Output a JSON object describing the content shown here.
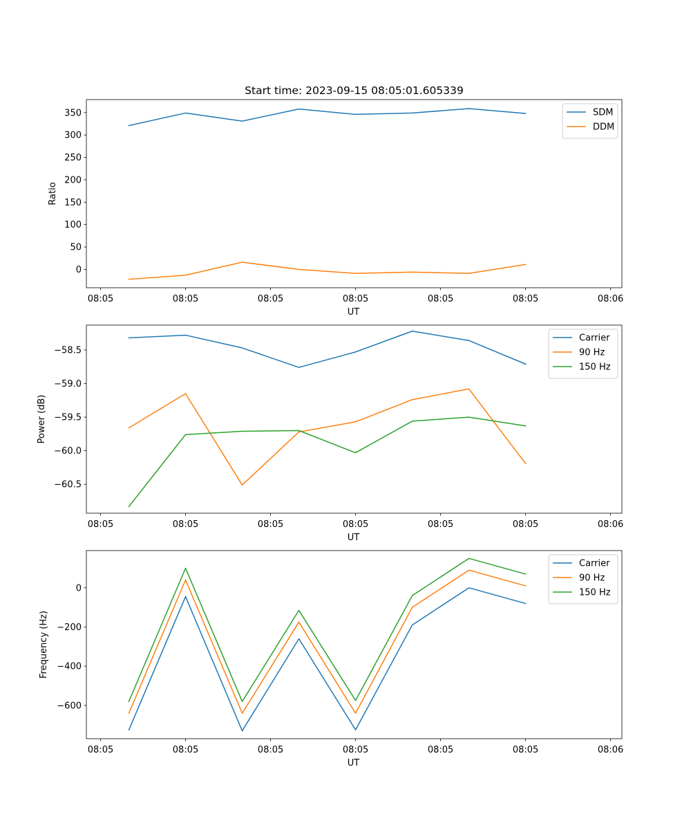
{
  "figure": {
    "title": "Start time: 2023-09-15 08:05:01.605339"
  },
  "chart_data": [
    {
      "type": "line",
      "title": "Start time: 2023-09-15 08:05:01.605339",
      "xlabel": "UT",
      "ylabel": "Ratio",
      "x": [
        1,
        2,
        3,
        4,
        5,
        6,
        7,
        8
      ],
      "xlim": [
        0.25,
        9.7
      ],
      "x_ticks": [
        0.5,
        2.0,
        3.5,
        5.0,
        6.5,
        8.0,
        9.5
      ],
      "x_tick_labels": [
        "08:05",
        "08:05",
        "08:05",
        "08:05",
        "08:05",
        "08:05",
        "08:06"
      ],
      "ylim": [
        -41,
        379
      ],
      "y_ticks": [
        0,
        50,
        100,
        150,
        200,
        250,
        300,
        350
      ],
      "y_tick_labels": [
        "0",
        "50",
        "100",
        "150",
        "200",
        "250",
        "300",
        "350"
      ],
      "legend_position": "top-right",
      "grid": false,
      "series": [
        {
          "name": "SDM",
          "color": "#1f77b4",
          "values": [
            321,
            349,
            331,
            358,
            346,
            349,
            359,
            348
          ]
        },
        {
          "name": "DDM",
          "color": "#ff7f0e",
          "values": [
            -22,
            -13,
            16,
            0,
            -9,
            -6,
            -9,
            11
          ]
        }
      ]
    },
    {
      "type": "line",
      "title": "",
      "xlabel": "UT",
      "ylabel": "Power (dB)",
      "x": [
        1,
        2,
        3,
        4,
        5,
        6,
        7,
        8
      ],
      "xlim": [
        0.25,
        9.7
      ],
      "x_ticks": [
        0.5,
        2.0,
        3.5,
        5.0,
        6.5,
        8.0,
        9.5
      ],
      "x_tick_labels": [
        "08:05",
        "08:05",
        "08:05",
        "08:05",
        "08:05",
        "08:05",
        "08:06"
      ],
      "ylim": [
        -60.93,
        -58.13
      ],
      "y_ticks": [
        -60.5,
        -60.0,
        -59.5,
        -59.0,
        -58.5
      ],
      "y_tick_labels": [
        "−60.5",
        "−60.0",
        "−59.5",
        "−59.0",
        "−58.5"
      ],
      "legend_position": "top-right",
      "grid": false,
      "series": [
        {
          "name": "Carrier",
          "color": "#1f77b4",
          "values": [
            -58.32,
            -58.28,
            -58.47,
            -58.76,
            -58.53,
            -58.22,
            -58.36,
            -58.71
          ]
        },
        {
          "name": "90 Hz",
          "color": "#ff7f0e",
          "values": [
            -59.66,
            -59.15,
            -60.51,
            -59.72,
            -59.57,
            -59.24,
            -59.08,
            -60.19
          ]
        },
        {
          "name": "150 Hz",
          "color": "#2ca02c",
          "values": [
            -60.83,
            -59.76,
            -59.71,
            -59.7,
            -60.03,
            -59.56,
            -59.5,
            -59.63
          ]
        }
      ]
    },
    {
      "type": "line",
      "title": "",
      "xlabel": "UT",
      "ylabel": "Frequency (Hz)",
      "x": [
        1,
        2,
        3,
        4,
        5,
        6,
        7,
        8
      ],
      "xlim": [
        0.25,
        9.7
      ],
      "x_ticks": [
        0.5,
        2.0,
        3.5,
        5.0,
        6.5,
        8.0,
        9.5
      ],
      "x_tick_labels": [
        "08:05",
        "08:05",
        "08:05",
        "08:05",
        "08:05",
        "08:05",
        "08:06"
      ],
      "ylim": [
        -770,
        190
      ],
      "y_ticks": [
        -600,
        -400,
        -200,
        0
      ],
      "y_tick_labels": [
        "−600",
        "−400",
        "−200",
        "0"
      ],
      "legend_position": "top-right",
      "grid": false,
      "series": [
        {
          "name": "Carrier",
          "color": "#1f77b4",
          "values": [
            -725,
            -45,
            -730,
            -260,
            -725,
            -190,
            0,
            -80
          ]
        },
        {
          "name": "90 Hz",
          "color": "#ff7f0e",
          "values": [
            -640,
            40,
            -640,
            -175,
            -640,
            -100,
            90,
            10
          ]
        },
        {
          "name": "150 Hz",
          "color": "#2ca02c",
          "values": [
            -580,
            100,
            -580,
            -115,
            -575,
            -40,
            150,
            70
          ]
        }
      ]
    }
  ]
}
